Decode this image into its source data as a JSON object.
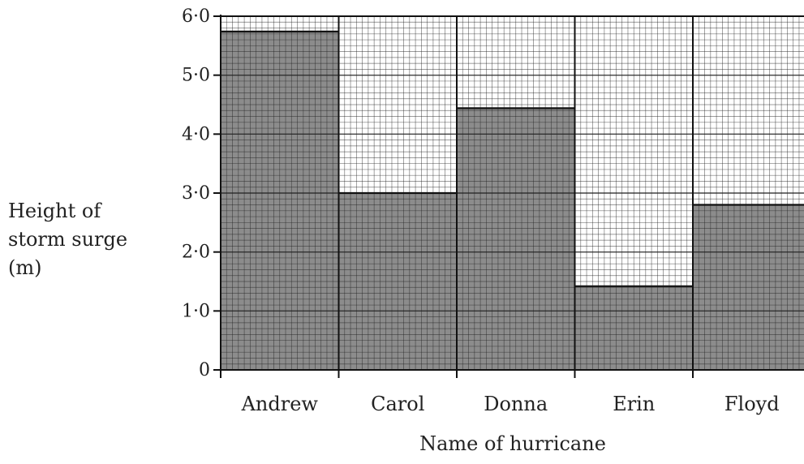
{
  "chart_data": {
    "type": "bar",
    "title": "",
    "xlabel": "Name of hurricane",
    "ylabel": [
      "Height of",
      "storm surge",
      "(m)"
    ],
    "categories": [
      "Andrew",
      "Carol",
      "Donna",
      "Erin",
      "Floyd"
    ],
    "values": [
      5.74,
      3.0,
      4.44,
      1.42,
      2.8
    ],
    "ylim": [
      0,
      6.0
    ],
    "yticks": [
      {
        "value": 0,
        "label": "0"
      },
      {
        "value": 1,
        "label": "1·0"
      },
      {
        "value": 2,
        "label": "2·0"
      },
      {
        "value": 3,
        "label": "3·0"
      },
      {
        "value": 4,
        "label": "4·0"
      },
      {
        "value": 5,
        "label": "5·0"
      },
      {
        "value": 6,
        "label": "6·0"
      }
    ],
    "grid": true,
    "legend": "none",
    "colors": {
      "bar_fill": "#8c8c8c",
      "grid_line": "#222222",
      "axis": "#111111",
      "background": "#ffffff"
    }
  }
}
